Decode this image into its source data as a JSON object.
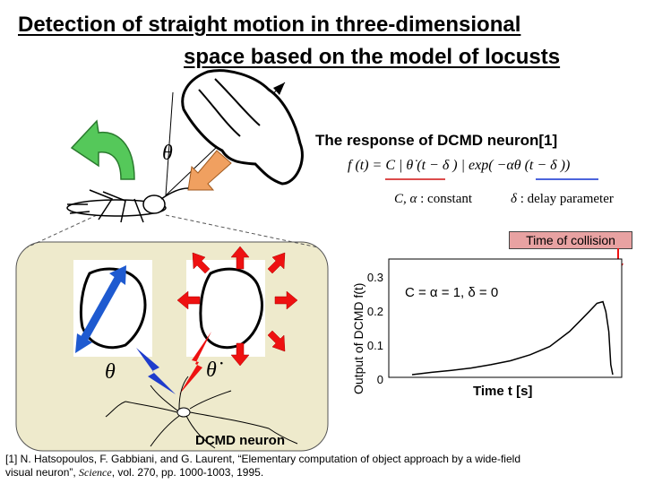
{
  "slide": {
    "title_line1": "Detection of straight motion in three-dimensional",
    "title_line2": "space based on the model of locusts"
  },
  "illustration": {
    "theta": "θ",
    "theta_dot": "θ̇",
    "neuron_label": "DCMD neuron",
    "colors": {
      "panel": "#eeeacc",
      "arrow_green": "#55c85a",
      "arrow_orange": "#f0a060",
      "arrow_blue": "#1e5ad0",
      "arrow_red": "#ee1111"
    }
  },
  "formula": {
    "title": "The response of DCMD neuron[1]",
    "lhs": "f (t) = C | ",
    "theta_dot": "θ̇",
    "rhs": " (t − δ ) | exp( −αθ (t − δ ))",
    "const_symbols": "C, α",
    "const_text": " : constant",
    "delay_symbol": "δ",
    "delay_text": " : delay parameter"
  },
  "chart_data": {
    "type": "line",
    "ylabel": "Output of DCMD f(t)",
    "xlabel": "Time t [s]",
    "yticks": [
      "0",
      "0.1",
      "0.2",
      "0.3"
    ],
    "ylim": [
      0,
      0.3
    ],
    "annotation": "Time of collision",
    "params": "C =  α = 1,    δ = 0",
    "series": [
      {
        "values": [
          [
            0.0,
            0.0
          ],
          [
            0.1,
            0.007
          ],
          [
            0.2,
            0.013
          ],
          [
            0.3,
            0.02
          ],
          [
            0.4,
            0.03
          ],
          [
            0.5,
            0.042
          ],
          [
            0.6,
            0.06
          ],
          [
            0.7,
            0.085
          ],
          [
            0.8,
            0.13
          ],
          [
            0.85,
            0.16
          ],
          [
            0.9,
            0.19
          ],
          [
            0.94,
            0.215
          ],
          [
            0.97,
            0.22
          ],
          [
            0.985,
            0.19
          ],
          [
            1.0,
            0.13
          ],
          [
            1.01,
            0.03
          ],
          [
            1.02,
            0.0
          ]
        ]
      }
    ]
  },
  "reference": {
    "line1": "[1] N. Hatsopoulos, F. Gabbiani, and G. Laurent,  “Elementary computation of object approach by a wide-field",
    "line2_pre": "visual neuron”, ",
    "journal": "Science",
    "line2_post": ", vol. 270, pp. 1000-1003, 1995."
  }
}
